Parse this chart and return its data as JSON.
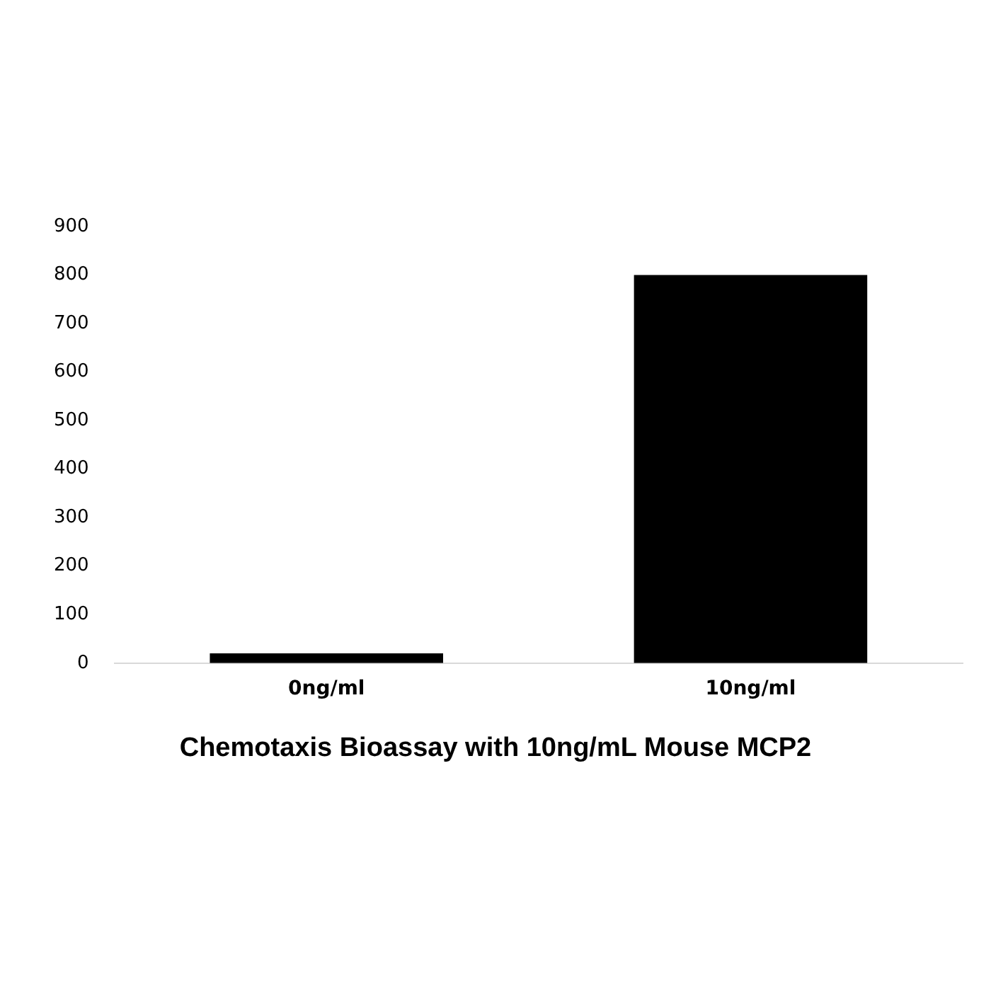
{
  "chart_data": {
    "type": "bar",
    "title": "Chemotaxis Bioassay with 10ng/mL Mouse MCP2",
    "categories": [
      "0ng/ml",
      "10ng/ml"
    ],
    "values": [
      20,
      800
    ],
    "color": "#000000",
    "ylim": [
      0,
      900
    ],
    "yticks": [
      0,
      100,
      200,
      300,
      400,
      500,
      600,
      700,
      800,
      900
    ],
    "grid": false
  }
}
